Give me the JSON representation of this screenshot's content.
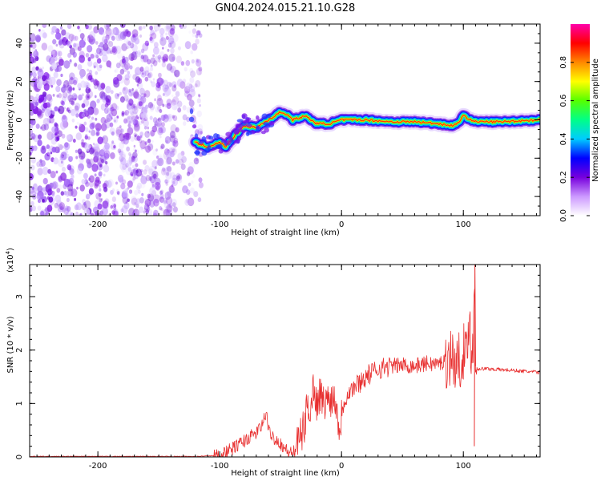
{
  "title": "GN04.2024.015.21.10.G28",
  "chart_data": [
    {
      "type": "heatmap",
      "xlabel": "Height of straight line (km)",
      "ylabel": "Frequency (Hz)",
      "xlim": [
        -256,
        163
      ],
      "ylim": [
        -50,
        50
      ],
      "xticks": [
        -200,
        -100,
        0,
        100
      ],
      "yticks": [
        -40,
        -20,
        0,
        20,
        40
      ],
      "colorbar": {
        "label": "Normalized spectral amplitude",
        "range": [
          0,
          1
        ],
        "ticks": [
          0.0,
          0.2,
          0.4,
          0.6,
          0.8
        ],
        "colors": [
          "#ffffff",
          "#cc99ff",
          "#7700dd",
          "#0000ff",
          "#00ccff",
          "#00ff88",
          "#55ff00",
          "#ffff00",
          "#ff8800",
          "#ff0000",
          "#ff00aa"
        ]
      },
      "noise_region_x": [
        -256,
        -115
      ],
      "ridge": {
        "x": [
          -120,
          -110,
          -100,
          -95,
          -90,
          -80,
          -70,
          -60,
          -50,
          -45,
          -40,
          -30,
          -20,
          -10,
          0,
          20,
          40,
          60,
          80,
          90,
          95,
          100,
          110,
          130,
          163
        ],
        "freq": [
          -12,
          -14,
          -12,
          -14,
          -10,
          -3,
          -4,
          0,
          4,
          3,
          0,
          2,
          -2,
          -2,
          0,
          0,
          -1,
          -1,
          -2,
          -3,
          -2,
          2,
          -1,
          -1,
          0
        ]
      }
    },
    {
      "type": "line",
      "xlabel": "Height of straight line (km)",
      "ylabel": "SNR (10 * v/v)",
      "yscale_note": "(x10",
      "yscale_exp": "4",
      "xlim": [
        -256,
        163
      ],
      "ylim": [
        0,
        3.6
      ],
      "xticks": [
        -200,
        -100,
        0,
        100
      ],
      "yticks": [
        0,
        1,
        2,
        3
      ],
      "series": [
        {
          "color": "#e83030",
          "x": [
            -256,
            -200,
            -150,
            -120,
            -100,
            -90,
            -80,
            -70,
            -65,
            -62,
            -60,
            -57,
            -55,
            -50,
            -45,
            -40,
            -35,
            -30,
            -28,
            -25,
            -23,
            -20,
            -18,
            -15,
            -10,
            -5,
            -1,
            0,
            5,
            10,
            20,
            30,
            40,
            50,
            60,
            70,
            80,
            85,
            90,
            95,
            100,
            103,
            105,
            107,
            108,
            109,
            110,
            112,
            120,
            140,
            163
          ],
          "y": [
            0.01,
            0.01,
            0.01,
            0.01,
            0.03,
            0.15,
            0.3,
            0.45,
            0.6,
            0.84,
            0.5,
            0.4,
            0.35,
            0.25,
            0.12,
            0.05,
            0.3,
            0.6,
            1.0,
            0.9,
            1.35,
            0.95,
            1.2,
            1.0,
            1.1,
            1.1,
            0.4,
            0.9,
            1.2,
            1.3,
            1.5,
            1.65,
            1.7,
            1.72,
            1.7,
            1.75,
            1.74,
            1.8,
            1.9,
            1.7,
            2.0,
            1.8,
            2.9,
            1.5,
            2.2,
            3.6,
            1.7,
            1.65,
            1.65,
            1.62,
            1.58
          ]
        }
      ]
    }
  ]
}
